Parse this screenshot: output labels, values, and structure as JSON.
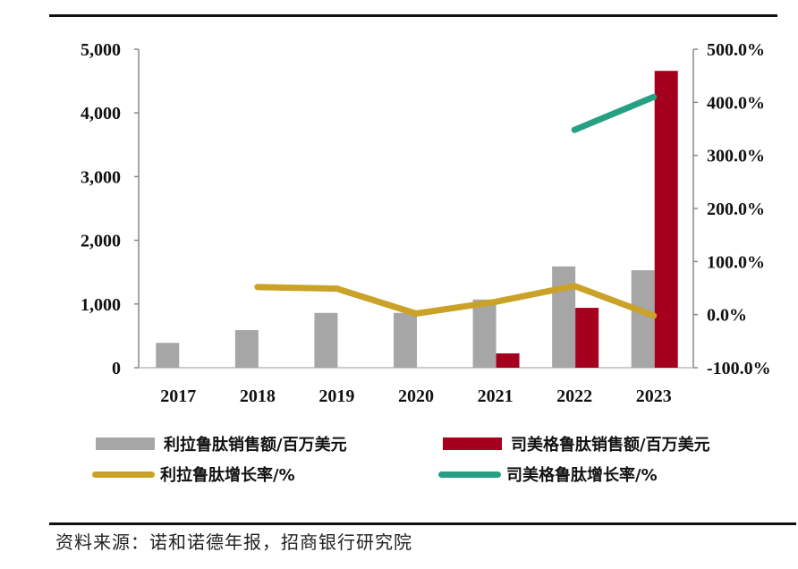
{
  "chart_data": {
    "type": "bar",
    "title": "",
    "categories": [
      "2017",
      "2018",
      "2019",
      "2020",
      "2021",
      "2022",
      "2023"
    ],
    "y_left": {
      "lim": [
        0,
        5000
      ],
      "ticks": [
        "0",
        "1,000",
        "2,000",
        "3,000",
        "4,000",
        "5,000"
      ],
      "tick_values": [
        0,
        1000,
        2000,
        3000,
        4000,
        5000
      ]
    },
    "y_right": {
      "lim": [
        -100,
        500
      ],
      "ticks": [
        "-100.0%",
        "0.0%",
        "100.0%",
        "200.0%",
        "300.0%",
        "400.0%",
        "500.0%"
      ],
      "tick_values": [
        -100,
        0,
        100,
        200,
        300,
        400,
        500
      ]
    },
    "series": [
      {
        "name": "利拉鲁肽销售额/百万美元",
        "kind": "bar",
        "axis": "left",
        "color": "#a6a6a6",
        "values": [
          390,
          590,
          860,
          860,
          1070,
          1590,
          1530
        ]
      },
      {
        "name": "司美格鲁肽销售额/百万美元",
        "kind": "bar",
        "axis": "left",
        "color": "#a6001f",
        "values": [
          null,
          null,
          null,
          null,
          225,
          940,
          4660
        ]
      },
      {
        "name": "利拉鲁肽增长率/%",
        "kind": "line",
        "axis": "right",
        "color": "#c9a227",
        "values": [
          null,
          52,
          49,
          2,
          24,
          54,
          -2
        ]
      },
      {
        "name": "司美格鲁肽增长率/%",
        "kind": "line",
        "axis": "right",
        "color": "#26a083",
        "values": [
          null,
          null,
          null,
          null,
          null,
          348,
          410
        ]
      }
    ],
    "legend_position": "bottom",
    "grid": false
  },
  "source": "资料来源：诺和诺德年报，招商银行研究院"
}
